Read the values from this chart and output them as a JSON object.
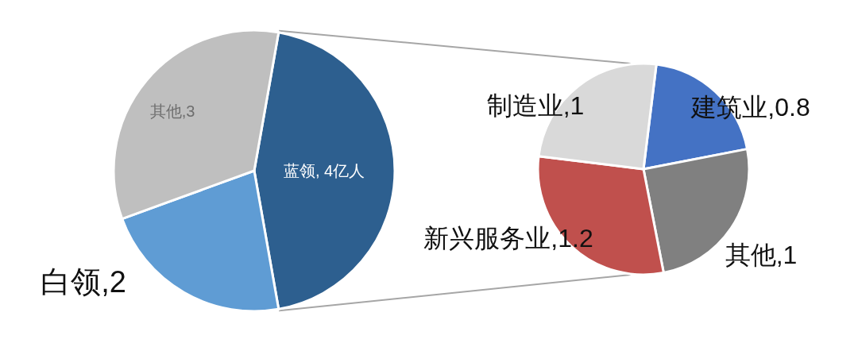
{
  "chart_data": [
    {
      "type": "pie",
      "categories": [
        "蓝领, 4亿人",
        "白领,2",
        "其他,3"
      ],
      "values": [
        4,
        2,
        3
      ],
      "colors": [
        "#2d5f8f",
        "#5f9cd4",
        "#bfbfbf"
      ]
    },
    {
      "type": "pie",
      "categories": [
        "建筑业,0.8",
        "其他,1",
        "新兴服务业,1.2",
        "制造业,1"
      ],
      "values": [
        0.8,
        1,
        1.2,
        1
      ],
      "colors": [
        "#4472c4",
        "#808080",
        "#c0504d",
        "#d9d9d9"
      ]
    }
  ]
}
